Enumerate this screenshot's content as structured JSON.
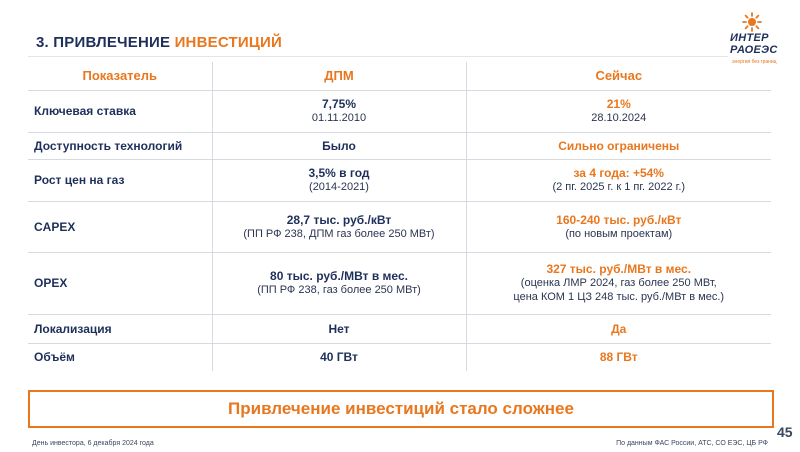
{
  "title": {
    "prefix": "3. ПРИВЛЕЧЕНИЕ ",
    "accent": "ИНВЕСТИЦИЙ"
  },
  "logo": {
    "line1": "ИНТЕР",
    "line2": "РАОЕЭС",
    "tagline": "энергия без границ"
  },
  "colors": {
    "accent": "#e8771e",
    "navy": "#1e2f5a"
  },
  "table": {
    "headers": [
      "Показатель",
      "ДПМ",
      "Сейчас"
    ],
    "rows": [
      {
        "label": "Ключевая ставка",
        "dpm_main": "7,75%",
        "dpm_sub": "01.11.2010",
        "now_main": "21%",
        "now_sub": "28.10.2024",
        "now_sub2": ""
      },
      {
        "label": "Доступность технологий",
        "dpm_main": "Было",
        "dpm_sub": "",
        "now_main": "Сильно ограничены",
        "now_sub": "",
        "now_sub2": ""
      },
      {
        "label": "Рост цен на газ",
        "dpm_main": "3,5% в год",
        "dpm_sub": "(2014-2021)",
        "now_main": "за 4 года: +54%",
        "now_sub": "(2 пг. 2025 г. к 1 пг. 2022 г.)",
        "now_sub2": ""
      },
      {
        "label": "CAPEX",
        "dpm_main": "28,7 тыс. руб./кВт",
        "dpm_sub": "(ПП РФ 238, ДПМ газ более 250 МВт)",
        "now_main": "160-240 тыс. руб./кВт",
        "now_sub": "(по новым проектам)",
        "now_sub2": ""
      },
      {
        "label": "OPEX",
        "dpm_main": "80 тыс. руб./МВт в мес.",
        "dpm_sub": "(ПП РФ 238, газ более 250 МВт)",
        "now_main": "327 тыс. руб./МВт в мес.",
        "now_sub": "(оценка ЛМР 2024, газ более 250 МВт,",
        "now_sub2": "цена КОМ 1 ЦЗ 248 тыс. руб./МВт в мес.)"
      },
      {
        "label": "Локализация",
        "dpm_main": "Нет",
        "dpm_sub": "",
        "now_main": "Да",
        "now_sub": "",
        "now_sub2": ""
      },
      {
        "label": "Объём",
        "dpm_main": "40 ГВт",
        "dpm_sub": "",
        "now_main": "88 ГВт",
        "now_sub": "",
        "now_sub2": ""
      }
    ]
  },
  "callout": "Привлечение инвестиций стало сложнее",
  "page_number": "45",
  "footer": {
    "left": "День инвестора, 6 декабря 2024 года",
    "right": "По данным ФАС России, АТС, СО ЕЭС, ЦБ РФ"
  }
}
